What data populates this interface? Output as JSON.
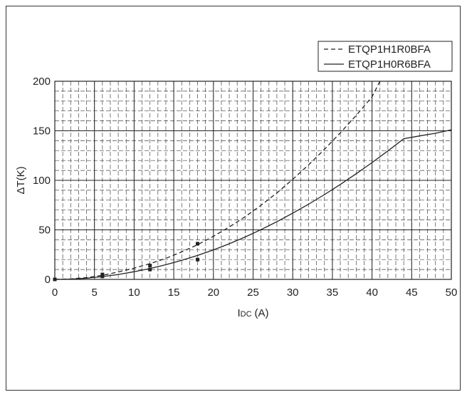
{
  "chart_data": {
    "type": "line",
    "title": "",
    "xlabel": "I",
    "xlabel_sub": "DC",
    "xlabel_unit": "(A)",
    "ylabel": "ΔT(K)",
    "xlim": [
      0,
      50
    ],
    "ylim": [
      0,
      200
    ],
    "xticks": [
      0,
      5,
      10,
      15,
      20,
      25,
      30,
      35,
      40,
      45,
      50
    ],
    "yticks": [
      0,
      50,
      100,
      150,
      200
    ],
    "grid": true,
    "legend_position": "top-right",
    "series": [
      {
        "name": "ETQP1H1R0BFA",
        "style": "dashed",
        "color": "#222222",
        "x": [
          0,
          2,
          4,
          6,
          8,
          10,
          12,
          14,
          16,
          18,
          20,
          22,
          24,
          26,
          28,
          30,
          32,
          34,
          36,
          38,
          40,
          41
        ],
        "y": [
          0,
          0.5,
          1.8,
          4.1,
          7.5,
          11.4,
          15.9,
          21.2,
          27.8,
          35.0,
          43.5,
          52.9,
          63.3,
          74.8,
          87.3,
          101.0,
          115.6,
          131.3,
          147.9,
          165.5,
          184.3,
          200
        ],
        "markers": [
          {
            "x": 0,
            "y": 0
          },
          {
            "x": 6,
            "y": 5
          },
          {
            "x": 12,
            "y": 14
          },
          {
            "x": 18,
            "y": 36
          }
        ]
      },
      {
        "name": "ETQP1H0R6BFA",
        "style": "solid",
        "color": "#222222",
        "x": [
          0,
          2,
          4,
          6,
          8,
          10,
          12,
          14,
          16,
          18,
          20,
          22,
          24,
          26,
          28,
          30,
          32,
          34,
          36,
          38,
          40,
          42,
          44,
          46,
          48,
          50
        ],
        "y": [
          0,
          0.3,
          1.2,
          2.8,
          5.0,
          7.8,
          11.0,
          14.8,
          19.2,
          24.2,
          29.8,
          36.0,
          42.8,
          50.2,
          58.2,
          66.8,
          75.9,
          85.6,
          95.8,
          106.6,
          117.9,
          129.7,
          142.0,
          144.8,
          147.5,
          151.0
        ],
        "markers": [
          {
            "x": 0,
            "y": 0
          },
          {
            "x": 6,
            "y": 3
          },
          {
            "x": 12,
            "y": 10
          },
          {
            "x": 18,
            "y": 20
          }
        ]
      }
    ]
  }
}
